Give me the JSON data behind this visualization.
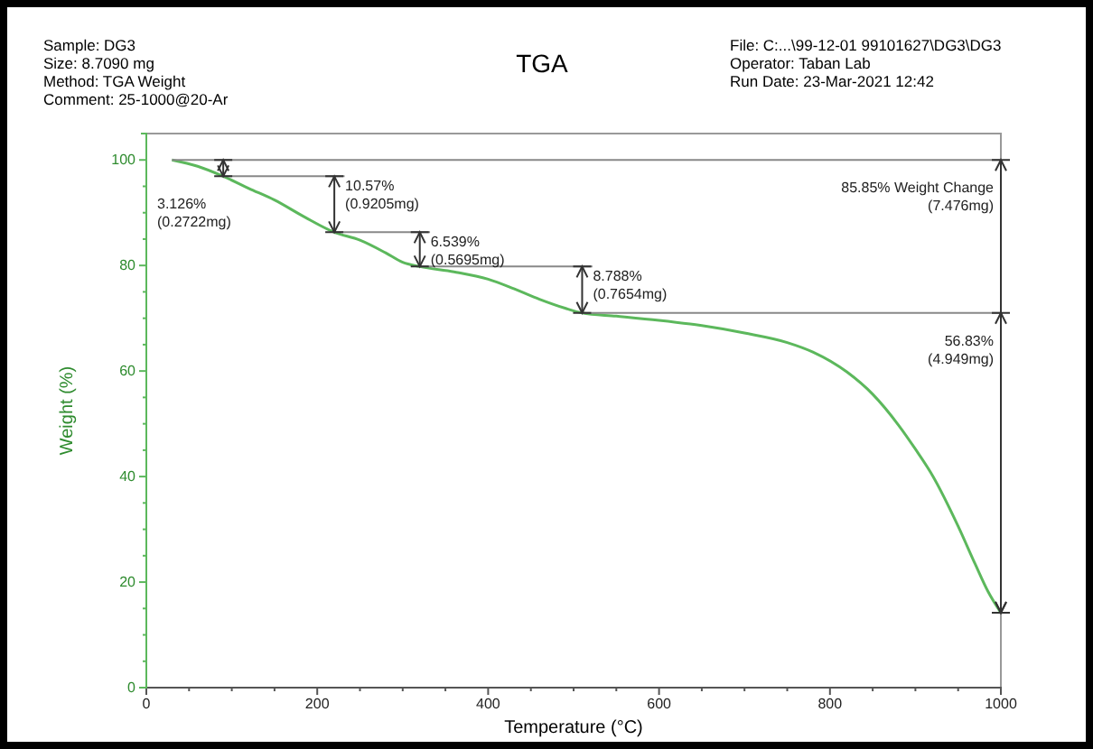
{
  "chart_data": {
    "type": "line",
    "title": "TGA",
    "xlabel": "Temperature (°C)",
    "ylabel": "Weight (%)",
    "x": [
      30,
      60,
      90,
      120,
      150,
      185,
      220,
      250,
      280,
      300,
      320,
      360,
      400,
      430,
      460,
      490,
      510,
      550,
      600,
      650,
      700,
      750,
      780,
      820,
      850,
      880,
      900,
      920,
      950,
      970,
      985,
      1000
    ],
    "series": [
      {
        "color": "#5cb85c",
        "values": [
          100,
          98.8,
          96.9,
          94.6,
          92.4,
          89.2,
          86.3,
          84.8,
          82.4,
          80.6,
          79.8,
          78.8,
          77.4,
          75.6,
          73.6,
          71.9,
          71,
          70.4,
          69.6,
          68.6,
          67.2,
          65.4,
          63.6,
          59.8,
          55.6,
          49.8,
          45.2,
          40.2,
          30.6,
          23.4,
          18.2,
          14.2
        ]
      }
    ],
    "xlim": [
      0,
      1000
    ],
    "ylim": [
      0,
      105
    ],
    "xticks": [
      0,
      {
        "value": 50,
        "label": null
      },
      {
        "value": 100,
        "label": null
      },
      {
        "value": 150,
        "label": null
      },
      200,
      {
        "value": 250,
        "label": null
      },
      {
        "value": 300,
        "label": null
      },
      {
        "value": 350,
        "label": null
      },
      400,
      {
        "value": 450,
        "label": null
      },
      {
        "value": 500,
        "label": null
      },
      {
        "value": 550,
        "label": null
      },
      600,
      {
        "value": 650,
        "label": null
      },
      {
        "value": 700,
        "label": null
      },
      {
        "value": 750,
        "label": null
      },
      800,
      {
        "value": 850,
        "label": null
      },
      {
        "value": 900,
        "label": null
      },
      {
        "value": 950,
        "label": null
      },
      1000
    ],
    "yticks": [
      0,
      {
        "value": 5,
        "label": null
      },
      {
        "value": 10,
        "label": null
      },
      {
        "value": 15,
        "label": null
      },
      20,
      {
        "value": 25,
        "label": null
      },
      {
        "value": 30,
        "label": null
      },
      {
        "value": 35,
        "label": null
      },
      40,
      {
        "value": 45,
        "label": null
      },
      {
        "value": 50,
        "label": null
      },
      {
        "value": 55,
        "label": null
      },
      60,
      {
        "value": 65,
        "label": null
      },
      {
        "value": 70,
        "label": null
      },
      {
        "value": 75,
        "label": null
      },
      80,
      {
        "value": 85,
        "label": null
      },
      {
        "value": 90,
        "label": null
      },
      {
        "value": 95,
        "label": null
      },
      100
    ],
    "grid": false,
    "marker": "none",
    "line_style": "solid",
    "ref_lines": [
      {
        "axis": "y",
        "value": 100,
        "color": "#888888"
      },
      {
        "axis": "y",
        "value": 96.9,
        "color": "#888888"
      },
      {
        "axis": "y",
        "value": 86.3,
        "color": "#888888"
      },
      {
        "axis": "y",
        "value": 79.8,
        "color": "#888888"
      },
      {
        "axis": "y",
        "value": 71,
        "color": "#888888"
      }
    ],
    "annotations": [
      {
        "text": "3.126%\n(0.2722mg)",
        "x": 90,
        "y": 100
      },
      {
        "text": "10.57%\n(0.9205mg)",
        "x": 220,
        "y": 96.9
      },
      {
        "text": "6.539%\n(0.5695mg)",
        "x": 320,
        "y": 86.3
      },
      {
        "text": "8.788%\n(0.7654mg)",
        "x": 510,
        "y": 79.8
      },
      {
        "text": "85.85% Weight Change\n(7.476mg)",
        "x": 1000,
        "y": 100
      },
      {
        "text": "56.83%\n(4.949mg)",
        "x": 1000,
        "y": 71
      },
      "Sample: DG3\nSize:  8.7090 mg\nMethod: TGA Weight\nComment: 25-1000@20-Ar",
      "File: C:...\\99-12-01 99101627\\DG3\\DG3\nOperator: Taban Lab\nRun Date: 23-Mar-2021 12:42"
    ]
  }
}
